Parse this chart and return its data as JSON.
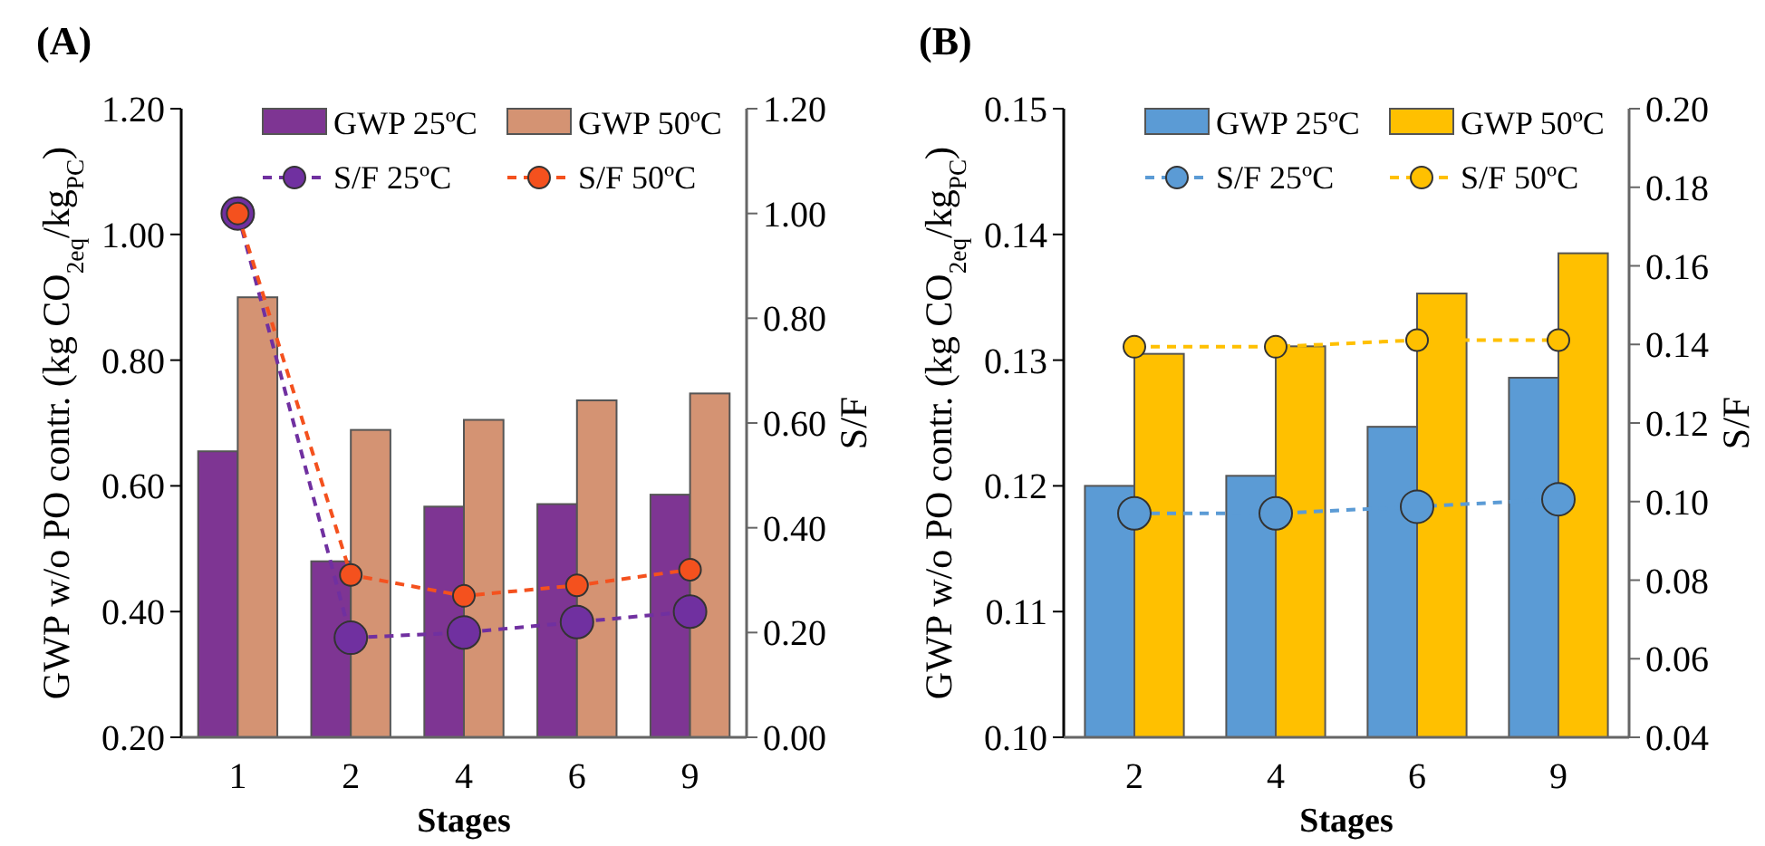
{
  "chart_data": [
    {
      "type": "bar",
      "title": "(A)",
      "xlabel": "Stages",
      "ylabel": "GWP w/o PO contr. (kg CO$_{2eq}$/kg$_{PC}$)",
      "y2label": "S/F",
      "categories": [
        "1",
        "2",
        "4",
        "6",
        "9"
      ],
      "ylim": [
        0.2,
        1.2
      ],
      "yticks": [
        {
          "value": 0.2,
          "label": "0.20"
        },
        {
          "value": 0.4,
          "label": "0.40"
        },
        {
          "value": 0.6,
          "label": "0.60"
        },
        {
          "value": 0.8,
          "label": "0.80"
        },
        {
          "value": 1.0,
          "label": "1.00"
        },
        {
          "value": 1.2,
          "label": "1.20"
        }
      ],
      "y2lim": [
        0,
        1.2
      ],
      "y2ticks": [
        {
          "value": 0,
          "label": "0.00"
        },
        {
          "value": 0.2,
          "label": "0.20"
        },
        {
          "value": 0.4,
          "label": "0.40"
        },
        {
          "value": 0.6,
          "label": "0.60"
        },
        {
          "value": 0.8,
          "label": "0.80"
        },
        {
          "value": 1.0,
          "label": "1.00"
        },
        {
          "value": 1.2,
          "label": "1.20"
        }
      ],
      "grid": false,
      "legend": "top",
      "marker": "circle",
      "line_style": "dashed",
      "series": [
        {
          "name": "GWP 25ºC",
          "color": "#7e3593",
          "values": [
            0.655,
            0.48,
            0.567,
            0.571,
            0.586
          ]
        },
        {
          "name": "GWP 50ºC",
          "color": "#d49373",
          "values": [
            0.9,
            0.689,
            0.705,
            0.736,
            0.747
          ]
        },
        {
          "name": "S/F 25ºC",
          "type": "line",
          "axis": "y2",
          "color": "#7030a0",
          "values": [
            1.0,
            0.19,
            0.2,
            0.22,
            0.24
          ]
        },
        {
          "name": "S/F 50ºC",
          "type": "line",
          "axis": "y2",
          "color": "#f4511e",
          "values": [
            1.0,
            0.31,
            0.27,
            0.29,
            0.32
          ]
        }
      ]
    },
    {
      "type": "bar",
      "title": "(B)",
      "xlabel": "Stages",
      "ylabel": "GWP w/o PO contr. (kg CO$_{2eq}$/kg$_{PC}$)",
      "y2label": "S/F",
      "categories": [
        "2",
        "4",
        "6",
        "9"
      ],
      "ylim": [
        0.1,
        0.15
      ],
      "yticks": [
        {
          "value": 0.1,
          "label": "0.10"
        },
        0.11,
        0.12,
        0.13,
        0.14,
        0.15
      ],
      "y2lim": [
        0.04,
        0.2
      ],
      "y2ticks": [
        0.04,
        0.06,
        0.08,
        {
          "value": 0.1,
          "label": "0.10"
        },
        0.12,
        0.14,
        0.16,
        0.18,
        {
          "value": 0.2,
          "label": "0.20"
        }
      ],
      "grid": false,
      "legend": "top",
      "marker": "circle",
      "line_style": "dashed",
      "series": [
        {
          "name": "GWP 25ºC",
          "color": "#5b9bd5",
          "values": [
            0.12,
            0.1208,
            0.1247,
            0.1286
          ]
        },
        {
          "name": "GWP 50ºC",
          "color": "#ffc000",
          "values": [
            0.1305,
            0.1311,
            0.1353,
            0.1385
          ]
        },
        {
          "name": "S/F 25ºC",
          "type": "line",
          "axis": "y2",
          "color": "#5b9bd5",
          "values": [
            0.097,
            0.097,
            0.0987,
            0.1006
          ]
        },
        {
          "name": "S/F 50ºC",
          "type": "line",
          "axis": "y2",
          "color": "#ffc000",
          "values": [
            0.1394,
            0.1394,
            0.1411,
            0.1411
          ]
        }
      ]
    }
  ]
}
